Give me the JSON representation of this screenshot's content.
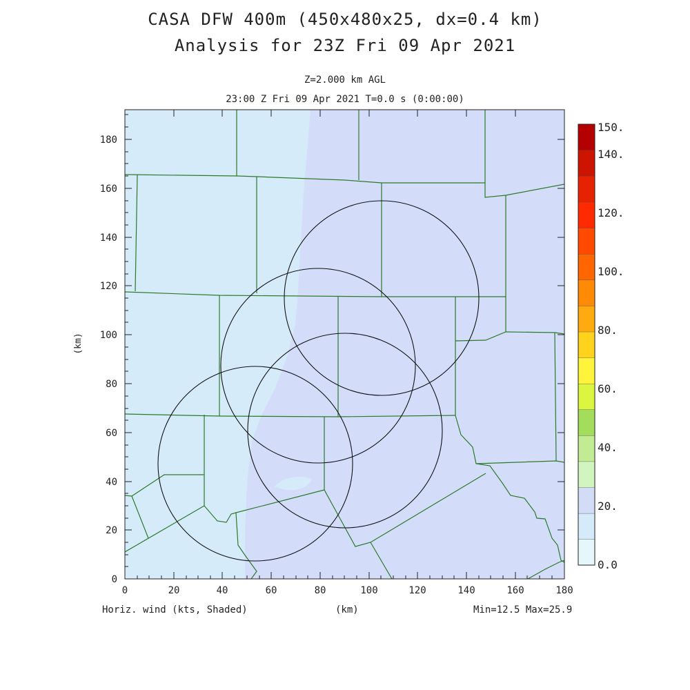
{
  "header": {
    "title_line1": "CASA DFW 400m (450x480x25, dx=0.4 km)",
    "title_line2": "Analysis for 23Z Fri 09 Apr 2021",
    "level": "Z=2.000 km AGL",
    "time": "23:00 Z Fri 09 Apr 2021   T=0.0 s (0:00:00)"
  },
  "footer": {
    "field": "Horiz. wind (kts, Shaded)",
    "xunit": "(km)",
    "stats": "Min=12.5 Max=25.9"
  },
  "axes": {
    "x_label": "(km)",
    "y_label": "(km)",
    "x_ticks": [
      "0",
      "20",
      "40",
      "60",
      "80",
      "100",
      "120",
      "140",
      "160",
      "180"
    ],
    "y_ticks": [
      "0",
      "20",
      "40",
      "60",
      "80",
      "100",
      "120",
      "140",
      "160",
      "180"
    ]
  },
  "colorbar": {
    "labels": [
      "0.0",
      "20.",
      "40.",
      "60.",
      "80.",
      "100.",
      "120.",
      "140.",
      "150."
    ],
    "colors": [
      "#e6f7fc",
      "#d6ebfa",
      "#d2dcf7",
      "#d2f5c0",
      "#c2ec94",
      "#a3dd5c",
      "#dcf53e",
      "#fff33c",
      "#ffd21e",
      "#ffaa0f",
      "#ff8a05",
      "#ff6600",
      "#ff4a00",
      "#ff2a00",
      "#e62200",
      "#cc1400",
      "#b40000"
    ]
  },
  "map": {
    "colors": {
      "low": "#d6ebfa",
      "mid": "#d3dcf8",
      "border": "#2a7a2a",
      "ring": "#111111"
    }
  }
}
